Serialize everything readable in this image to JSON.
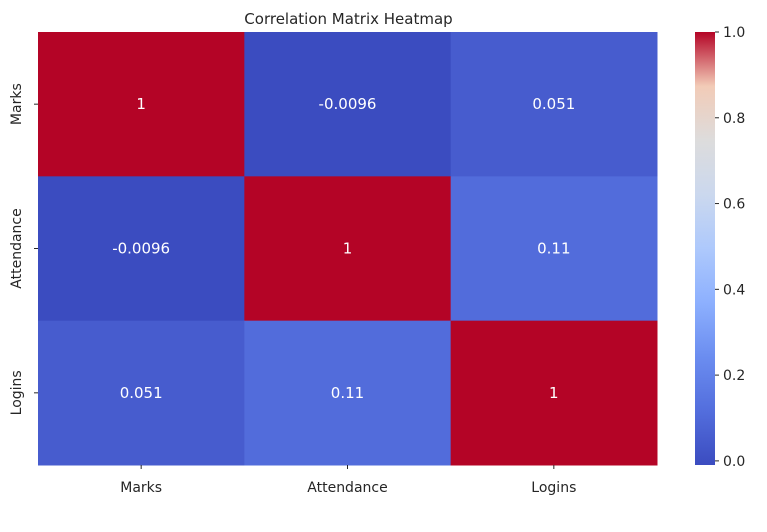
{
  "chart_data": {
    "type": "heatmap",
    "title": "Correlation Matrix Heatmap",
    "x_categories": [
      "Marks",
      "Attendance",
      "Logins"
    ],
    "y_categories": [
      "Marks",
      "Attendance",
      "Logins"
    ],
    "values": [
      [
        1,
        -0.0096,
        0.051
      ],
      [
        -0.0096,
        1,
        0.11
      ],
      [
        0.051,
        0.11,
        1
      ]
    ],
    "annotations": [
      [
        "1",
        "-0.0096",
        "0.051"
      ],
      [
        "-0.0096",
        "1",
        "0.11"
      ],
      [
        "0.051",
        "0.11",
        "1"
      ]
    ],
    "colormap": "coolwarm",
    "color_range": [
      -0.0096,
      1
    ],
    "colorbar_ticks": [
      {
        "value": 0.0,
        "label": "0.0"
      },
      {
        "value": 0.2,
        "label": "0.2"
      },
      {
        "value": 0.4,
        "label": "0.4"
      },
      {
        "value": 0.6,
        "label": "0.6"
      },
      {
        "value": 0.8,
        "label": "0.8"
      },
      {
        "value": 1.0,
        "label": "1.0"
      }
    ],
    "colors": {
      "low": "#3b4cc0",
      "high": "#b40426",
      "mid": "#dddddd"
    }
  }
}
